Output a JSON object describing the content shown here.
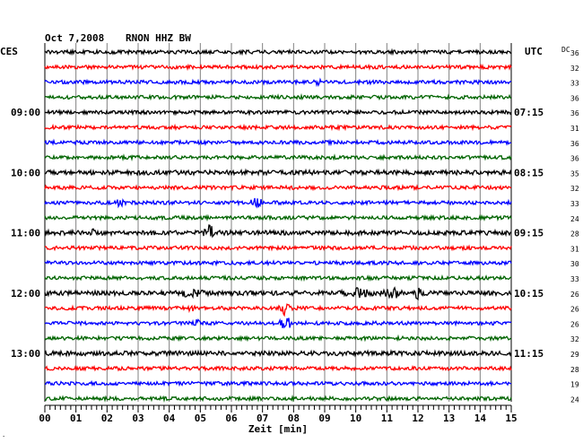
{
  "header": {
    "date": "Oct 7,2008",
    "station": "RNON HHZ BW",
    "left_zone": "CES",
    "right_zone": "UTC",
    "dc_label": "DC"
  },
  "chart_data": {
    "type": "line",
    "title": "Oct 7,2008   RNON HHZ BW",
    "xlabel": "Zeit [min]",
    "xlim": [
      0,
      15
    ],
    "x_ticks": [
      "00",
      "01",
      "02",
      "03",
      "04",
      "05",
      "06",
      "07",
      "08",
      "09",
      "10",
      "11",
      "12",
      "13",
      "14",
      "15"
    ],
    "grid": true,
    "left_time_labels": [
      {
        "row": 4,
        "text": "09:00"
      },
      {
        "row": 8,
        "text": "10:00"
      },
      {
        "row": 12,
        "text": "11:00"
      },
      {
        "row": 16,
        "text": "12:00"
      },
      {
        "row": 20,
        "text": "13:00"
      }
    ],
    "right_time_labels": [
      {
        "row": 4,
        "text": "07:15"
      },
      {
        "row": 8,
        "text": "08:15"
      },
      {
        "row": 12,
        "text": "09:15"
      },
      {
        "row": 16,
        "text": "10:15"
      },
      {
        "row": 20,
        "text": "11:15"
      }
    ],
    "trace_colors": [
      "#000000",
      "#ff0000",
      "#0000ff",
      "#006400"
    ],
    "dc_offsets": [
      36,
      32,
      33,
      36,
      36,
      31,
      36,
      36,
      35,
      32,
      33,
      24,
      28,
      31,
      30,
      33,
      26,
      26,
      26,
      32,
      29,
      28,
      19,
      24
    ],
    "traces": [
      {
        "row": 0,
        "amp": 2,
        "events": []
      },
      {
        "row": 1,
        "amp": 2,
        "events": []
      },
      {
        "row": 2,
        "amp": 2,
        "events": [
          {
            "t": 8.8,
            "a": 5,
            "w": 0.1
          }
        ]
      },
      {
        "row": 3,
        "amp": 2,
        "events": []
      },
      {
        "row": 4,
        "amp": 2,
        "events": []
      },
      {
        "row": 5,
        "amp": 2,
        "events": []
      },
      {
        "row": 6,
        "amp": 2,
        "events": []
      },
      {
        "row": 7,
        "amp": 2,
        "events": []
      },
      {
        "row": 8,
        "amp": 2.5,
        "events": []
      },
      {
        "row": 9,
        "amp": 2,
        "events": []
      },
      {
        "row": 10,
        "amp": 2,
        "events": [
          {
            "t": 2.4,
            "a": 4,
            "w": 0.1
          },
          {
            "t": 6.8,
            "a": 6,
            "w": 0.15
          }
        ]
      },
      {
        "row": 11,
        "amp": 2,
        "events": []
      },
      {
        "row": 12,
        "amp": 2.5,
        "events": [
          {
            "t": 1.6,
            "a": 3,
            "w": 0.1
          },
          {
            "t": 5.3,
            "a": 7,
            "w": 0.15
          }
        ]
      },
      {
        "row": 13,
        "amp": 2,
        "events": []
      },
      {
        "row": 14,
        "amp": 2,
        "events": []
      },
      {
        "row": 15,
        "amp": 2,
        "events": []
      },
      {
        "row": 16,
        "amp": 2.5,
        "events": [
          {
            "t": 4.7,
            "a": 3,
            "w": 0.3
          },
          {
            "t": 10.1,
            "a": 4,
            "w": 0.35
          },
          {
            "t": 11.2,
            "a": 4,
            "w": 0.25
          },
          {
            "t": 12.0,
            "a": 5,
            "w": 0.1
          }
        ]
      },
      {
        "row": 17,
        "amp": 2,
        "events": [
          {
            "t": 4.7,
            "a": 3,
            "w": 0.08
          },
          {
            "t": 7.75,
            "a": 7,
            "w": 0.15
          }
        ]
      },
      {
        "row": 18,
        "amp": 2,
        "events": [
          {
            "t": 4.9,
            "a": 3,
            "w": 0.08
          },
          {
            "t": 7.75,
            "a": 7,
            "w": 0.15
          }
        ]
      },
      {
        "row": 19,
        "amp": 2,
        "events": []
      },
      {
        "row": 20,
        "amp": 2.5,
        "events": []
      },
      {
        "row": 21,
        "amp": 2,
        "events": []
      },
      {
        "row": 22,
        "amp": 2,
        "events": []
      },
      {
        "row": 23,
        "amp": 2,
        "events": []
      }
    ]
  }
}
